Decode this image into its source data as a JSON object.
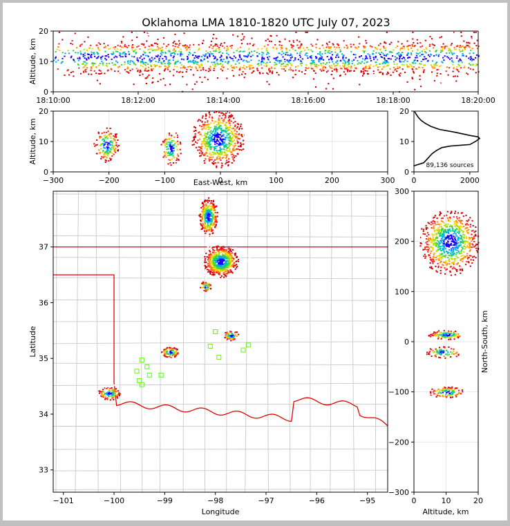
{
  "title": "Oklahoma LMA 1810-1820 UTC July 07, 2023",
  "chart_data": [
    {
      "type": "scatter",
      "panel": "altitude-time",
      "ylabel": "Altitude, km",
      "ylim": [
        0,
        20
      ],
      "y_ticks": [
        "0",
        "10",
        "20"
      ],
      "x_ticks": [
        "18:10:00",
        "18:12:00",
        "18:14:00",
        "18:16:00",
        "18:18:00",
        "18:20:00"
      ],
      "x_range_minutes": [
        0,
        10
      ],
      "density_by_minute": [
        0.55,
        0.75,
        0.9,
        0.85,
        0.7,
        0.8,
        0.9,
        0.75,
        0.8,
        0.7
      ]
    },
    {
      "type": "scatter",
      "panel": "altitude-eastwest",
      "xlabel": "East-West, km",
      "ylabel": "Altitude, km",
      "xlim": [
        -300,
        300
      ],
      "ylim": [
        0,
        20
      ],
      "x_ticks": [
        "−300",
        "−200",
        "−100",
        "0",
        "100",
        "200",
        "300"
      ],
      "y_ticks": [
        "0",
        "10",
        "20"
      ],
      "clusters": [
        {
          "x": -205,
          "z": 9,
          "sx": 12,
          "sz": 3,
          "n": 180
        },
        {
          "x": -90,
          "z": 8,
          "sx": 10,
          "sz": 3,
          "n": 140
        },
        {
          "x": -5,
          "z": 11,
          "sx": 25,
          "sz": 5,
          "n": 700
        }
      ]
    },
    {
      "type": "line",
      "panel": "source-histogram",
      "x_ticks": [
        "0",
        "2000"
      ],
      "y_ticks": [
        "0",
        "10",
        "20"
      ],
      "xlim": [
        0,
        2300
      ],
      "ylim": [
        0,
        20
      ],
      "annotation": "89,136 sources",
      "profile": [
        [
          0,
          2
        ],
        [
          350,
          3
        ],
        [
          450,
          4
        ],
        [
          650,
          6
        ],
        [
          800,
          7
        ],
        [
          1000,
          8
        ],
        [
          1300,
          8.5
        ],
        [
          2000,
          9
        ],
        [
          2200,
          10
        ],
        [
          2350,
          11
        ],
        [
          2300,
          11.5
        ],
        [
          2000,
          12
        ],
        [
          1500,
          13
        ],
        [
          900,
          14
        ],
        [
          600,
          15
        ],
        [
          400,
          16
        ],
        [
          250,
          17
        ],
        [
          150,
          18
        ],
        [
          80,
          19
        ],
        [
          30,
          19.8
        ]
      ]
    },
    {
      "type": "scatter",
      "panel": "plan-view",
      "xlabel": "Longitude",
      "ylabel": "Latitude",
      "xlim": [
        -101.2,
        -94.6
      ],
      "ylim": [
        32.6,
        38.0
      ],
      "x_ticks": [
        "−101",
        "−100",
        "−99",
        "−98",
        "−97",
        "−96",
        "−95"
      ],
      "y_ticks": [
        "33",
        "34",
        "35",
        "36",
        "37"
      ],
      "clusters": [
        {
          "lon": -98.15,
          "lat": 37.55,
          "slon": 0.1,
          "slat": 0.18,
          "n": 380
        },
        {
          "lon": -97.9,
          "lat": 36.75,
          "slon": 0.18,
          "slat": 0.15,
          "n": 700
        },
        {
          "lon": -98.2,
          "lat": 36.3,
          "slon": 0.06,
          "slat": 0.05,
          "n": 60
        },
        {
          "lon": -97.7,
          "lat": 35.42,
          "slon": 0.08,
          "slat": 0.05,
          "n": 80
        },
        {
          "lon": -98.9,
          "lat": 35.12,
          "slon": 0.1,
          "slat": 0.05,
          "n": 110
        },
        {
          "lon": -100.1,
          "lat": 34.38,
          "slon": 0.12,
          "slat": 0.06,
          "n": 120
        }
      ],
      "stations": [
        [
          -99.45,
          34.97
        ],
        [
          -99.35,
          34.85
        ],
        [
          -99.55,
          34.77
        ],
        [
          -99.3,
          34.7
        ],
        [
          -99.5,
          34.6
        ],
        [
          -99.45,
          34.53
        ],
        [
          -99.07,
          34.7
        ],
        [
          -98.0,
          35.48
        ],
        [
          -98.1,
          35.22
        ],
        [
          -97.35,
          35.24
        ],
        [
          -97.45,
          35.15
        ],
        [
          -97.93,
          35.02
        ]
      ]
    },
    {
      "type": "scatter",
      "panel": "northsouth-altitude",
      "xlabel": "Altitude, km",
      "ylabel": "North-South, km",
      "xlim": [
        0,
        20
      ],
      "ylim": [
        -300,
        300
      ],
      "x_ticks": [
        "0",
        "10",
        "20"
      ],
      "y_ticks": [
        "−300",
        "−200",
        "−100",
        "0",
        "100",
        "200",
        "300"
      ],
      "clusters": [
        {
          "z": 11,
          "y": 200,
          "sz": 5,
          "sy": 35,
          "n": 900
        },
        {
          "z": 10,
          "y": 15,
          "sz": 3,
          "sy": 5,
          "n": 120
        },
        {
          "z": 9,
          "y": -20,
          "sz": 3,
          "sy": 6,
          "n": 110
        },
        {
          "z": 10,
          "y": -100,
          "sz": 3,
          "sy": 6,
          "n": 120
        }
      ]
    }
  ]
}
